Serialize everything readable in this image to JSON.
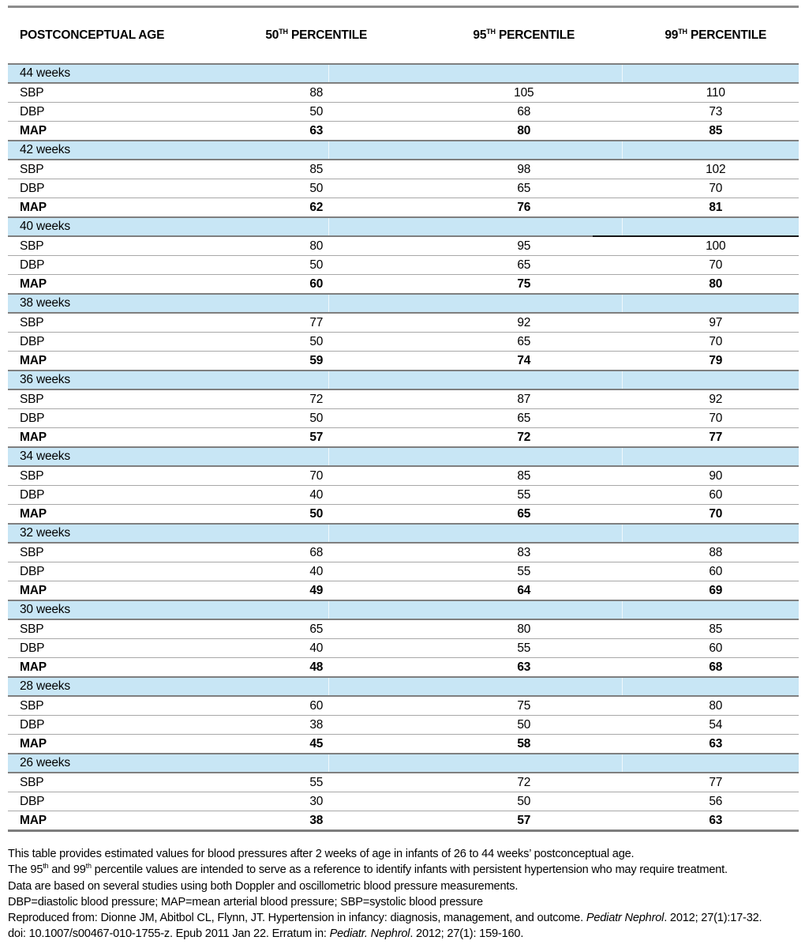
{
  "colors": {
    "band_blue": "#c8e6f5",
    "band_border_gray": "#7f7f7f",
    "row_line_gray": "#a8a8a8",
    "table_edge_gray": "#8c8c8c",
    "special_segment_black": "#161616"
  },
  "table": {
    "headers": [
      {
        "segments": [
          {
            "t": "POSTCONCEPTUAL AGE"
          }
        ]
      },
      {
        "segments": [
          {
            "t": "50"
          },
          {
            "t": "TH",
            "sup": true
          },
          {
            "t": " PERCENTILE"
          }
        ]
      },
      {
        "segments": [
          {
            "t": "95"
          },
          {
            "t": "TH",
            "sup": true
          },
          {
            "t": " PERCENTILE"
          }
        ]
      },
      {
        "segments": [
          {
            "t": "99"
          },
          {
            "t": "TH",
            "sup": true
          },
          {
            "t": " PERCENTILE"
          }
        ]
      }
    ],
    "sections": [
      {
        "age": "44 weeks",
        "rows": [
          {
            "label": "SBP",
            "values": [
              "88",
              "105",
              "110"
            ],
            "bold": false
          },
          {
            "label": "DBP",
            "values": [
              "50",
              "68",
              "73"
            ],
            "bold": false
          },
          {
            "label": "MAP",
            "values": [
              "63",
              "80",
              "85"
            ],
            "bold": true
          }
        ]
      },
      {
        "age": "42 weeks",
        "rows": [
          {
            "label": "SBP",
            "values": [
              "85",
              "98",
              "102"
            ],
            "bold": false
          },
          {
            "label": "DBP",
            "values": [
              "50",
              "65",
              "70"
            ],
            "bold": false
          },
          {
            "label": "MAP",
            "values": [
              "62",
              "76",
              "81"
            ],
            "bold": true
          }
        ]
      },
      {
        "age": "40 weeks",
        "rows": [
          {
            "label": "SBP",
            "values": [
              "80",
              "95",
              "100"
            ],
            "bold": false,
            "special_top_segment": true
          },
          {
            "label": "DBP",
            "values": [
              "50",
              "65",
              "70"
            ],
            "bold": false
          },
          {
            "label": "MAP",
            "values": [
              "60",
              "75",
              "80"
            ],
            "bold": true
          }
        ]
      },
      {
        "age": "38 weeks",
        "rows": [
          {
            "label": "SBP",
            "values": [
              "77",
              "92",
              "97"
            ],
            "bold": false
          },
          {
            "label": "DBP",
            "values": [
              "50",
              "65",
              "70"
            ],
            "bold": false
          },
          {
            "label": "MAP",
            "values": [
              "59",
              "74",
              "79"
            ],
            "bold": true
          }
        ]
      },
      {
        "age": "36 weeks",
        "rows": [
          {
            "label": "SBP",
            "values": [
              "72",
              "87",
              "92"
            ],
            "bold": false
          },
          {
            "label": "DBP",
            "values": [
              "50",
              "65",
              "70"
            ],
            "bold": false
          },
          {
            "label": "MAP",
            "values": [
              "57",
              "72",
              "77"
            ],
            "bold": true
          }
        ]
      },
      {
        "age": "34 weeks",
        "rows": [
          {
            "label": "SBP",
            "values": [
              "70",
              "85",
              "90"
            ],
            "bold": false
          },
          {
            "label": "DBP",
            "values": [
              "40",
              "55",
              "60"
            ],
            "bold": false
          },
          {
            "label": "MAP",
            "values": [
              "50",
              "65",
              "70"
            ],
            "bold": true
          }
        ]
      },
      {
        "age": "32 weeks",
        "rows": [
          {
            "label": "SBP",
            "values": [
              "68",
              "83",
              "88"
            ],
            "bold": false
          },
          {
            "label": "DBP",
            "values": [
              "40",
              "55",
              "60"
            ],
            "bold": false
          },
          {
            "label": "MAP",
            "values": [
              "49",
              "64",
              "69"
            ],
            "bold": true
          }
        ]
      },
      {
        "age": "30 weeks",
        "rows": [
          {
            "label": "SBP",
            "values": [
              "65",
              "80",
              "85"
            ],
            "bold": false
          },
          {
            "label": "DBP",
            "values": [
              "40",
              "55",
              "60"
            ],
            "bold": false
          },
          {
            "label": "MAP",
            "values": [
              "48",
              "63",
              "68"
            ],
            "bold": true
          }
        ]
      },
      {
        "age": "28 weeks",
        "rows": [
          {
            "label": "SBP",
            "values": [
              "60",
              "75",
              "80"
            ],
            "bold": false
          },
          {
            "label": "DBP",
            "values": [
              "38",
              "50",
              "54"
            ],
            "bold": false
          },
          {
            "label": "MAP",
            "values": [
              "45",
              "58",
              "63"
            ],
            "bold": true
          }
        ]
      },
      {
        "age": "26 weeks",
        "rows": [
          {
            "label": "SBP",
            "values": [
              "55",
              "72",
              "77"
            ],
            "bold": false
          },
          {
            "label": "DBP",
            "values": [
              "30",
              "50",
              "56"
            ],
            "bold": false
          },
          {
            "label": "MAP",
            "values": [
              "38",
              "57",
              "63"
            ],
            "bold": true
          }
        ]
      }
    ]
  },
  "footnotes": [
    {
      "segments": [
        {
          "t": "This table provides estimated values for blood pressures after 2 weeks of age in infants of 26 to 44 weeks’ postconceptual age."
        }
      ]
    },
    {
      "segments": [
        {
          "t": "The 95"
        },
        {
          "t": "th",
          "sup": true
        },
        {
          "t": " and 99"
        },
        {
          "t": "th",
          "sup": true
        },
        {
          "t": " percentile values are intended to serve as a reference to identify infants with persistent hypertension who may require treatment."
        }
      ]
    },
    {
      "segments": [
        {
          "t": "Data are based on several studies using both Doppler and oscillometric blood pressure measurements."
        }
      ]
    },
    {
      "segments": [
        {
          "t": "DBP=diastolic blood pressure; MAP=mean arterial blood pressure; SBP=systolic blood pressure"
        }
      ]
    },
    {
      "segments": [
        {
          "t": "Reproduced from: Dionne JM, Abitbol CL, Flynn, JT.  Hypertension in infancy: diagnosis, management, and outcome. "
        },
        {
          "t": "Pediatr Nephrol",
          "italic": true
        },
        {
          "t": ". 2012; 27(1):17-32."
        }
      ]
    },
    {
      "segments": [
        {
          "t": "doi: 10.1007/s00467-010-1755-z. Epub 2011 Jan 22.   Erratum in: "
        },
        {
          "t": "Pediatr. Nephrol",
          "italic": true
        },
        {
          "t": ". 2012; 27(1): 159-160."
        }
      ]
    }
  ]
}
